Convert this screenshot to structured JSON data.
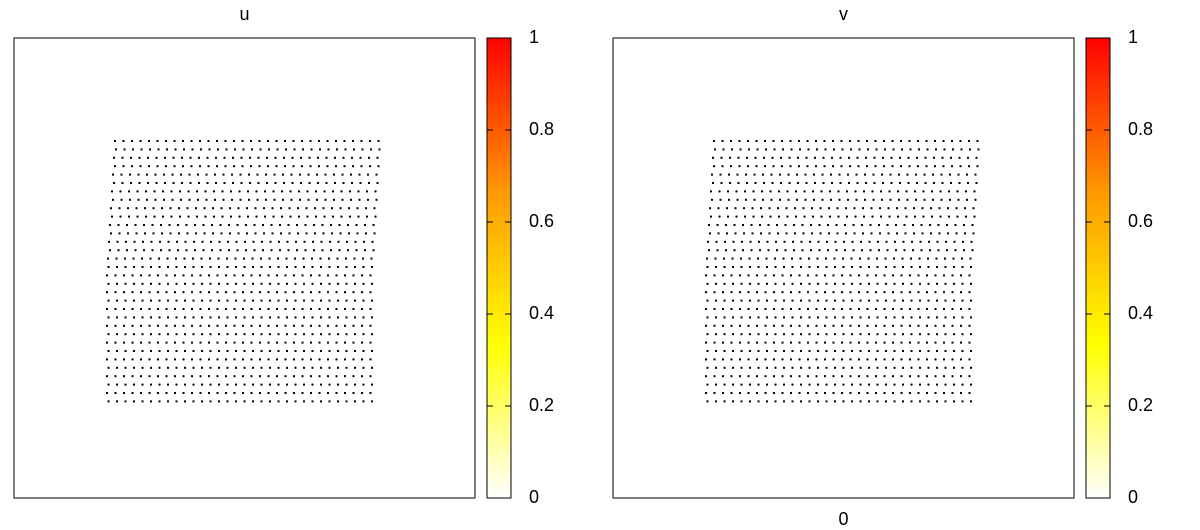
{
  "chart_data": [
    {
      "type": "heatmap",
      "title": "u",
      "cblim": [
        0,
        1
      ],
      "cbticks": [
        0,
        0.2,
        0.4,
        0.6,
        0.8,
        1
      ],
      "palette": [
        "#ffffff",
        "#ffff00",
        "#ff9900",
        "#ff0000"
      ],
      "point_color": "#000000"
    },
    {
      "type": "heatmap",
      "title": "v",
      "cblim": [
        0,
        1
      ],
      "cbticks": [
        0,
        0.2,
        0.4,
        0.6,
        0.8,
        1
      ],
      "palette": [
        "#ffffff",
        "#ffff00",
        "#ff9900",
        "#ff0000"
      ],
      "point_color": "#000000",
      "xlabel": "0"
    }
  ]
}
